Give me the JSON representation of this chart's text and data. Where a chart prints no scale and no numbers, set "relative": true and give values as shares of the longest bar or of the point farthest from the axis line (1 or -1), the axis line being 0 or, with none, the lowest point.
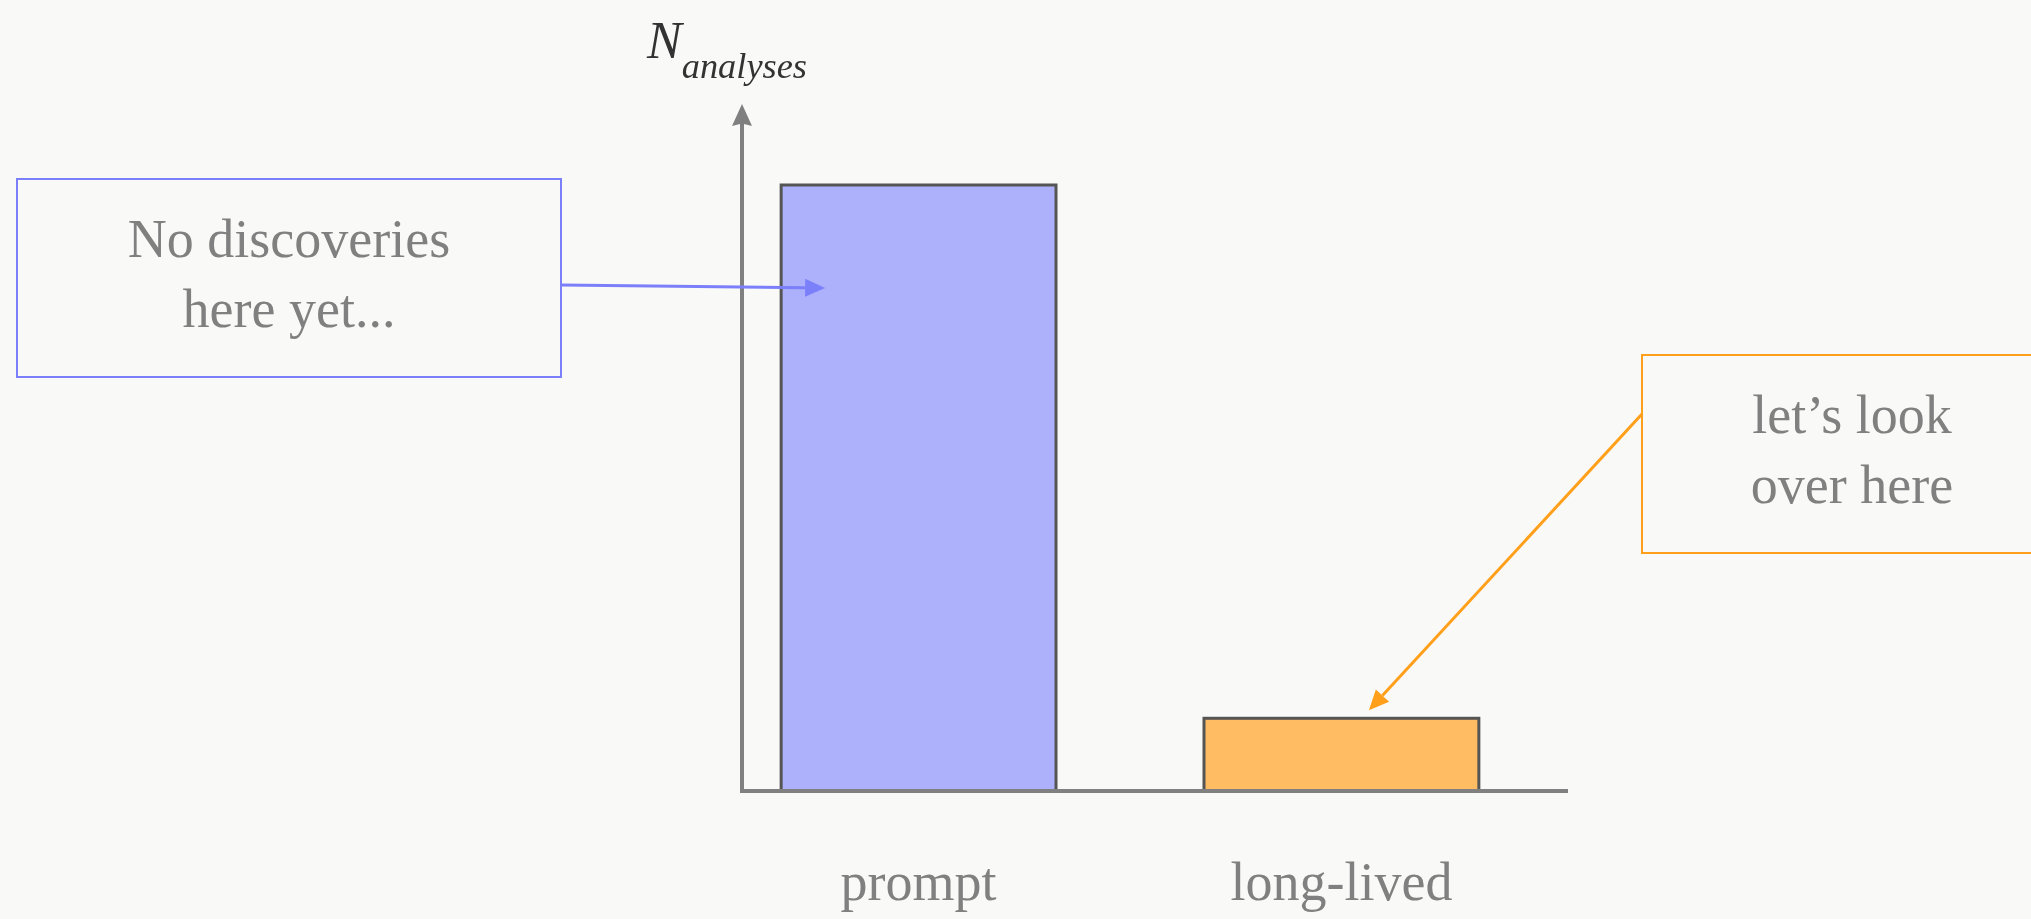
{
  "chart_data": {
    "type": "bar",
    "relative": true,
    "ylabel": "N$_{analyses}$",
    "categories": [
      "prompt",
      "long-lived"
    ],
    "values": [
      1,
      0.12
    ],
    "colors": [
      "#adb0fa",
      "#ffbc63"
    ],
    "annotations": [
      "No discoveries here yet...",
      "let’s look over here"
    ]
  }
}
